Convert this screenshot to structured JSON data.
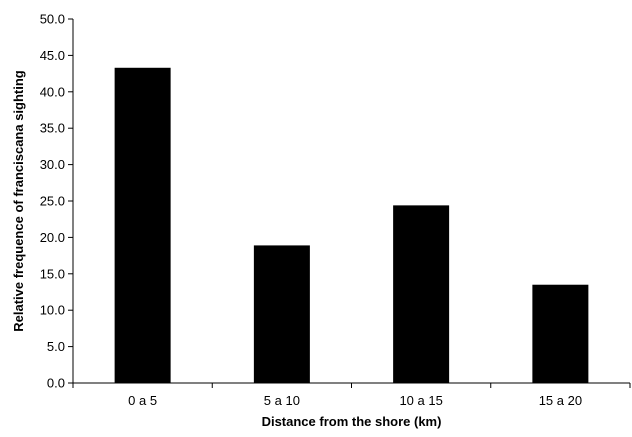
{
  "chart_data": {
    "type": "bar",
    "categories": [
      "0 a 5",
      "5 a 10",
      "10 a 15",
      "15 a 20"
    ],
    "values": [
      43.3,
      18.9,
      24.4,
      13.5
    ],
    "title": "",
    "xlabel": "Distance from the shore (km)",
    "ylabel": "Relative frequence of franciscana sighting",
    "ylim": [
      0,
      50
    ],
    "yticks": [
      "0.0",
      "5.0",
      "10.0",
      "15.0",
      "20.0",
      "25.0",
      "30.0",
      "35.0",
      "40.0",
      "45.0",
      "50.0"
    ],
    "grid": false,
    "legend": "none",
    "bar_color": "#000000"
  }
}
